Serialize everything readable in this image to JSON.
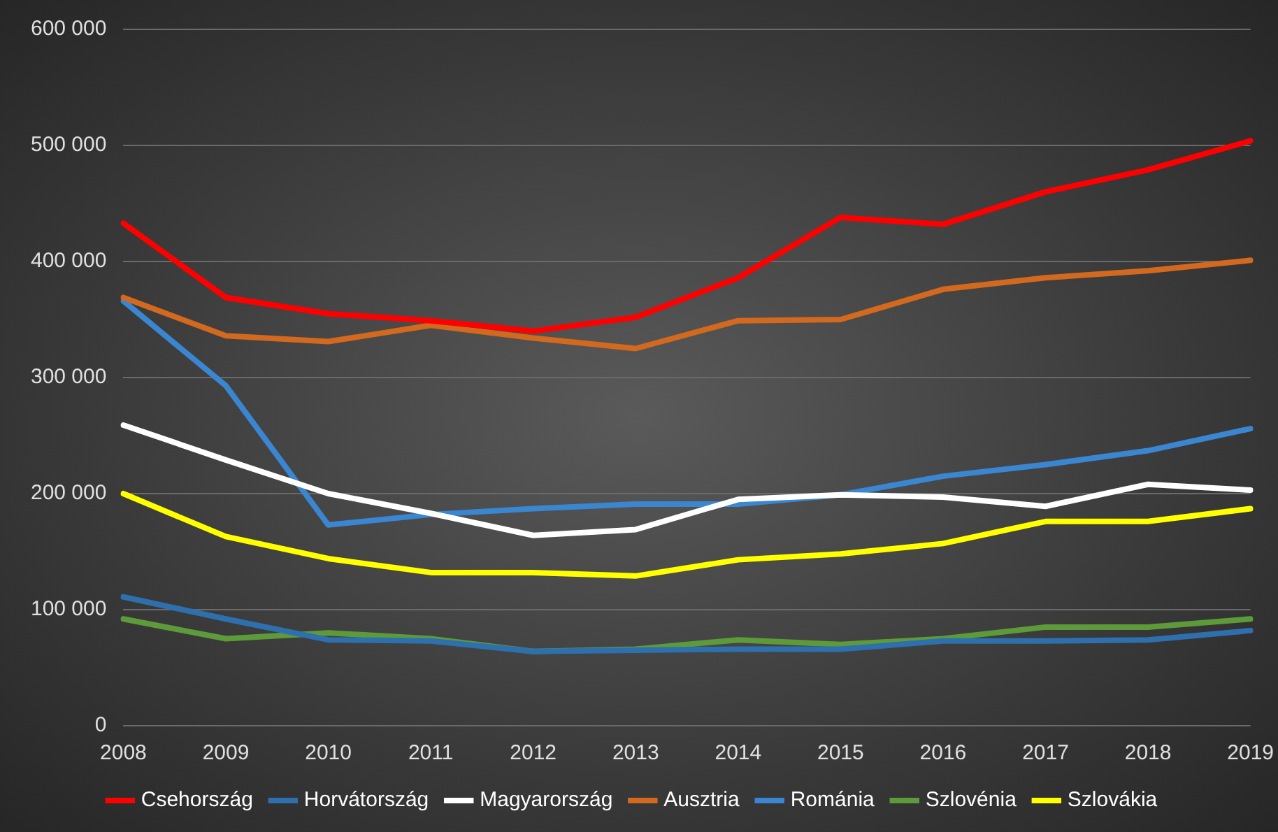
{
  "chart_data": {
    "type": "line",
    "categories": [
      "2008",
      "2009",
      "2010",
      "2011",
      "2012",
      "2013",
      "2014",
      "2015",
      "2016",
      "2017",
      "2018",
      "2019"
    ],
    "series": [
      {
        "name": "Csehország",
        "color": "#ff0000",
        "values": [
          433000,
          369000,
          355000,
          349000,
          340000,
          352000,
          386000,
          438000,
          432000,
          460000,
          479000,
          504000
        ]
      },
      {
        "name": "Horvátország",
        "color": "#2e6fad",
        "values": [
          111000,
          92000,
          74000,
          73000,
          64000,
          65000,
          66000,
          66000,
          73000,
          73000,
          74000,
          82000
        ]
      },
      {
        "name": "Magyarország",
        "color": "#ffffff",
        "values": [
          259000,
          229000,
          200000,
          183000,
          164000,
          169000,
          195000,
          199000,
          197000,
          189000,
          208000,
          203000
        ]
      },
      {
        "name": "Ausztria",
        "color": "#d2691e",
        "values": [
          369000,
          336000,
          331000,
          345000,
          334000,
          325000,
          349000,
          350000,
          376000,
          386000,
          392000,
          401000
        ]
      },
      {
        "name": "Románia",
        "color": "#3a86d0",
        "values": [
          366000,
          293000,
          173000,
          182000,
          187000,
          191000,
          191000,
          199000,
          215000,
          225000,
          237000,
          256000
        ]
      },
      {
        "name": "Szlovénia",
        "color": "#5d9b3a",
        "values": [
          92000,
          75000,
          80000,
          75000,
          64000,
          66000,
          74000,
          70000,
          75000,
          85000,
          85000,
          92000
        ]
      },
      {
        "name": "Szlovákia",
        "color": "#ffff00",
        "values": [
          200000,
          163000,
          144000,
          132000,
          132000,
          129000,
          143000,
          148000,
          157000,
          176000,
          176000,
          187000
        ]
      }
    ],
    "ylim": [
      0,
      600000
    ],
    "yticks": [
      {
        "value": 0,
        "label": "0"
      },
      {
        "value": 100000,
        "label": "100 000"
      },
      {
        "value": 200000,
        "label": "200 000"
      },
      {
        "value": 300000,
        "label": "300 000"
      },
      {
        "value": 400000,
        "label": "400 000"
      },
      {
        "value": 500000,
        "label": "500 000"
      },
      {
        "value": 600000,
        "label": "600 000"
      }
    ],
    "grid": "y",
    "legend": "bottom",
    "marker": "none",
    "line_style": "solid"
  }
}
